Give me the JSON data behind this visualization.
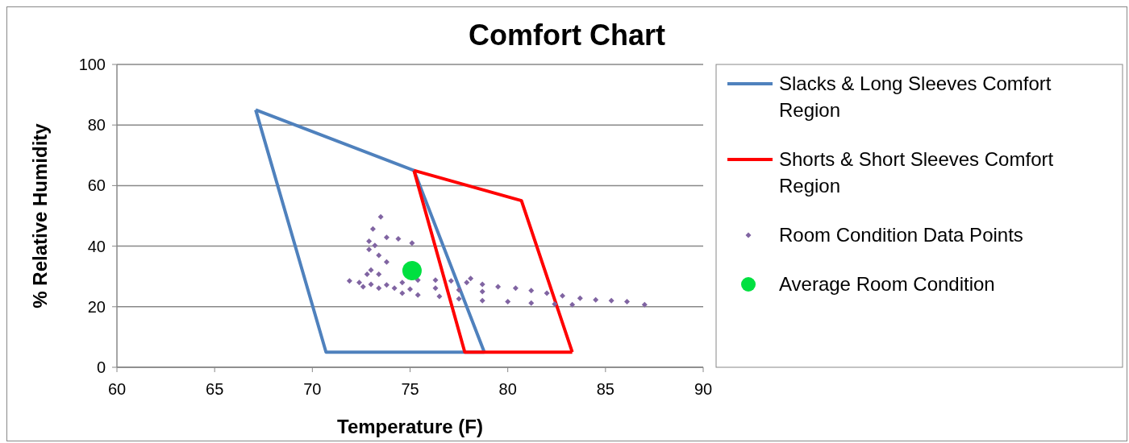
{
  "chart_data": {
    "type": "scatter",
    "title": "Comfort Chart",
    "xlabel": "Temperature (F)",
    "ylabel": "% Relative Humidity",
    "xlim": [
      60,
      90
    ],
    "xticks": [
      60,
      65,
      70,
      75,
      80,
      85,
      90
    ],
    "ylim": [
      0,
      100
    ],
    "yticks": [
      0,
      20,
      40,
      60,
      80,
      100
    ],
    "grid": "y",
    "legend": "right",
    "series": [
      {
        "name": "Slacks & Long Sleeves Comfort Region",
        "type": "line",
        "color": "#4f81bd",
        "marker": "none",
        "x": [
          67.1,
          75.2,
          78.8
        ],
        "values": [
          85,
          65,
          5
        ]
      },
      {
        "type": "line",
        "color": "#4f81bd",
        "marker": "none",
        "x": [
          67.1,
          70.7,
          78.8
        ],
        "values": [
          85,
          5,
          5
        ]
      },
      {
        "name": "Shorts & Short Sleeves Comfort Region",
        "type": "line",
        "color": "#ff0000",
        "marker": "none",
        "x": [
          75.2,
          80.7,
          83.3
        ],
        "values": [
          65,
          55,
          5
        ]
      },
      {
        "type": "line",
        "color": "#ff0000",
        "marker": "none",
        "x": [
          75.2,
          77.8,
          83.3
        ],
        "values": [
          65,
          5,
          5
        ]
      },
      {
        "name": "Room Condition Data Points",
        "color": "#8064a2",
        "marker": "diamond",
        "x": [
          73.5,
          73.1,
          72.9,
          73.2,
          73.8,
          74.4,
          75.1,
          72.9,
          73.4,
          73.8,
          73.0,
          72.8,
          73.4,
          71.9,
          72.4,
          73.0,
          73.8,
          74.6,
          75.4,
          76.3,
          77.1,
          77.9,
          78.1,
          78.7,
          79.5,
          80.4,
          81.2,
          82.0,
          82.8,
          83.7,
          84.5,
          85.3,
          86.1,
          87.0,
          74.6,
          75.4,
          76.5,
          77.5,
          78.7,
          80.0,
          81.2,
          82.4,
          83.3,
          72.6,
          73.4,
          74.2,
          75.0,
          76.3,
          77.5,
          78.7
        ],
        "values": [
          49.7,
          45.7,
          41.6,
          40.2,
          42.9,
          42.4,
          41.0,
          38.9,
          37.0,
          34.8,
          32.1,
          30.7,
          30.7,
          28.5,
          28.0,
          27.4,
          27.2,
          28.0,
          28.8,
          28.8,
          28.5,
          28.0,
          29.3,
          27.4,
          26.6,
          26.1,
          25.3,
          24.5,
          23.6,
          22.8,
          22.3,
          22.0,
          21.7,
          20.7,
          24.5,
          23.9,
          23.4,
          22.6,
          22.0,
          21.7,
          21.2,
          20.9,
          20.7,
          26.6,
          26.1,
          26.1,
          25.8,
          26.1,
          25.5,
          25.0
        ]
      },
      {
        "name": "Average Room Condition",
        "color": "#00e040",
        "marker": "circle",
        "x": [
          75.1
        ],
        "values": [
          31.9
        ]
      }
    ]
  }
}
